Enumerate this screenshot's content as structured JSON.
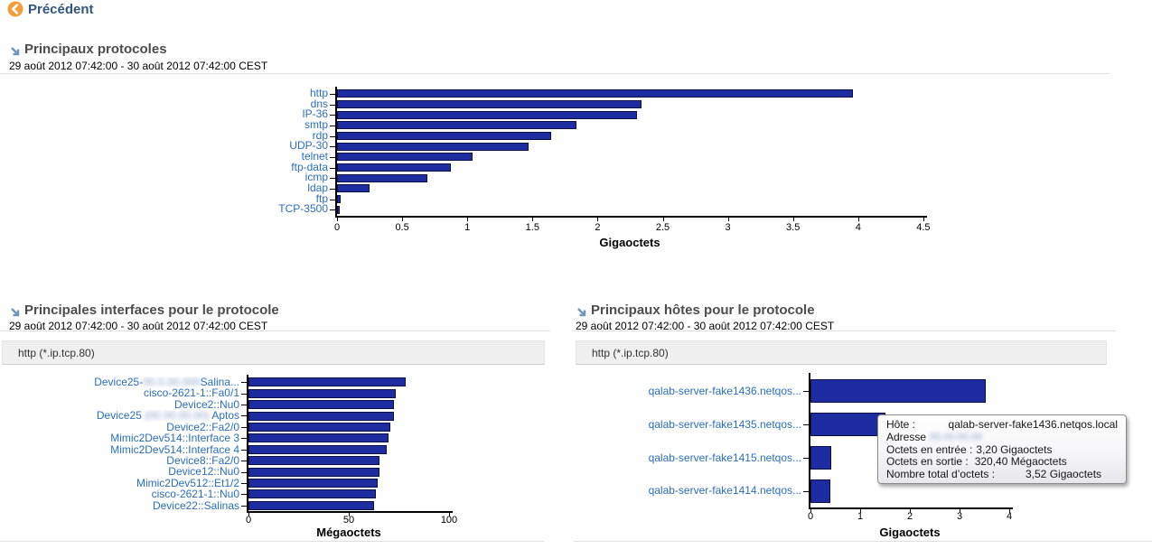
{
  "colors": {
    "bar": "#1d2da1",
    "bar_border": "#0a1140",
    "y_label": "#2a6ebe",
    "back_orange": "#f49c38",
    "drill_icon_blue": "#6f96ba",
    "header_gray": "#4c4c4c",
    "back_text": "#31567c"
  },
  "back": {
    "label": "Précédent"
  },
  "sections": [
    {
      "title": "Principaux protocoles",
      "date": "29 août 2012 07:42:00 - 30 août 2012 07:42:00 CEST"
    },
    {
      "title": "Principales interfaces pour le protocole",
      "date": "29 août 2012 07:42:00 - 30 août 2012 07:42:00 CEST",
      "filter": "http (*.ip.tcp.80)"
    },
    {
      "title": "Principaux hôtes pour le protocole",
      "date": "29 août 2012 07:42:00 - 30 août 2012 07:42:00 CEST",
      "filter": "http (*.ip.tcp.80)"
    }
  ],
  "chart_data": [
    {
      "type": "bar",
      "orientation": "horizontal",
      "title": "Principaux protocoles",
      "categories": [
        "http",
        "dns",
        "IP-36",
        "smtp",
        "rdp",
        "UDP-30",
        "telnet",
        "ftp-data",
        "icmp",
        "ldap",
        "ftp",
        "TCP-3500"
      ],
      "values": [
        3.96,
        2.34,
        2.3,
        1.84,
        1.64,
        1.47,
        1.04,
        0.87,
        0.69,
        0.25,
        0.03,
        0.02
      ],
      "xlabel": "Gigaoctets",
      "xlim": [
        0,
        4.5
      ],
      "xticks": [
        0,
        0.5,
        1,
        1.5,
        2,
        2.5,
        3,
        3.5,
        4,
        4.5
      ],
      "grid": false,
      "legend": false
    },
    {
      "type": "bar",
      "orientation": "horizontal",
      "title": "Principales interfaces pour le protocole",
      "categories": [
        [
          "Device25-",
          {
            "blur": "00.0.00.000"
          },
          "Salina..."
        ],
        "cisco-2621-1::Fa0/1",
        "Device2::Nu0",
        [
          "Device25 ",
          {
            "blur": "(00.00.00.00)"
          },
          " Aptos"
        ],
        "Device2::Fa2/0",
        "Mimic2Dev514::Interface 3",
        "Mimic2Dev514::Interface 4",
        "Device8::Fa2/0",
        "Device12::Nu0",
        "Mimic2Dev512::Et1/2",
        "cisco-2621-1::Nu0",
        "Device22::Salinas"
      ],
      "values": [
        78.3,
        73.4,
        72.7,
        72.7,
        70.8,
        69.9,
        69.0,
        65.4,
        65.4,
        64.5,
        63.6,
        62.7
      ],
      "xlabel": "Mégaoctets",
      "xlim": [
        0,
        100
      ],
      "xticks": [
        0,
        50,
        100
      ],
      "grid": false,
      "legend": false
    },
    {
      "type": "bar",
      "orientation": "horizontal",
      "title": "Principaux hôtes pour le protocole",
      "categories": [
        "qalab-server-fake1436.netqos...",
        "qalab-server-fake1435.netqos...",
        "qalab-server-fake1415.netqos...",
        "qalab-server-fake1414.netqos..."
      ],
      "values": [
        3.52,
        1.5,
        0.42,
        0.4
      ],
      "xlabel": "Gigaoctets",
      "xlim": [
        0,
        4
      ],
      "xticks": [
        0,
        1,
        2,
        3,
        4
      ],
      "grid": false,
      "legend": false,
      "note_value_bar2_partially_hidden_by_tooltip": true
    }
  ],
  "tooltip": {
    "host_label": "Hôte :",
    "host_value": "qalab-server-fake1436.netqos.local",
    "address_label": "Adresse",
    "address_blur": "00.00.00.00",
    "in_label": "Octets en entrée :",
    "in_value": "3,20 Gigaoctets",
    "out_label": "Octets en sortie :",
    "out_value": "320,40 Mégaoctets",
    "total_label": "Nombre total d’octets :",
    "total_value": "3,52 Gigaoctets"
  }
}
